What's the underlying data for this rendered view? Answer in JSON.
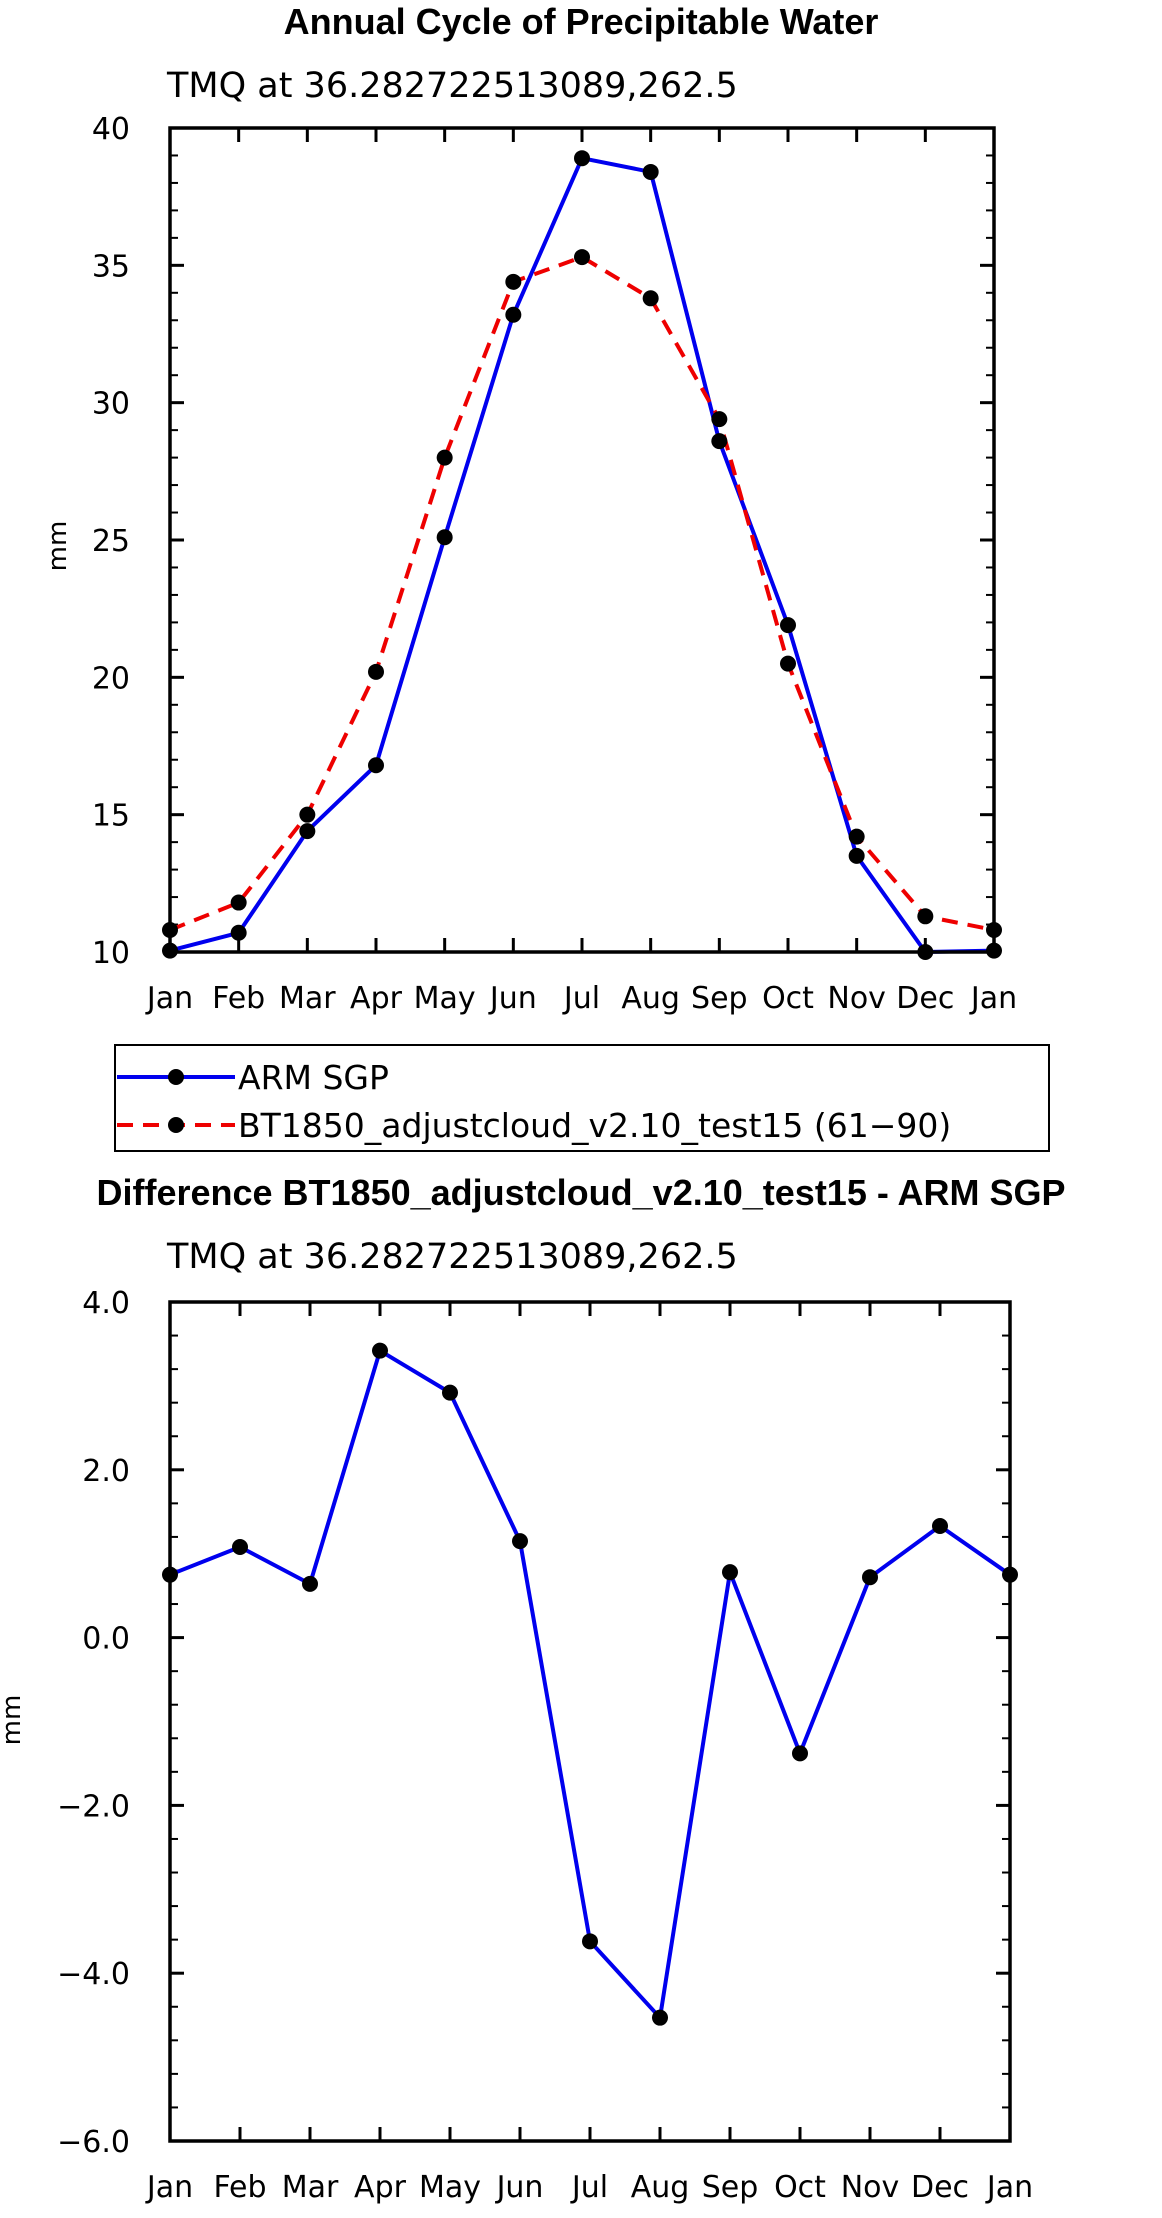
{
  "chart_data": [
    {
      "type": "line",
      "title": "Annual Cycle of Precipitable Water",
      "subtitle": "TMQ at 36.282722513089,262.5",
      "ylabel": "mm",
      "xlabel": "",
      "categories": [
        "Jan",
        "Feb",
        "Mar",
        "Apr",
        "May",
        "Jun",
        "Jul",
        "Aug",
        "Sep",
        "Oct",
        "Nov",
        "Dec",
        "Jan"
      ],
      "ylim": [
        10,
        40
      ],
      "yticks": [
        10,
        15,
        20,
        25,
        30,
        35,
        40
      ],
      "ytick_labels": [
        "10",
        "15",
        "20",
        "25",
        "30",
        "35",
        "40"
      ],
      "series": [
        {
          "name": "ARM SGP",
          "color": "#0000ee",
          "dash": "solid",
          "values": [
            10.05,
            10.7,
            14.4,
            16.8,
            25.1,
            33.2,
            38.9,
            38.4,
            28.6,
            21.9,
            13.5,
            10.0,
            10.05
          ]
        },
        {
          "name": "BT1850_adjustcloud_v2.10_test15 (61-90)",
          "color": "#ee0000",
          "dash": "dashed",
          "values": [
            10.8,
            11.8,
            15.0,
            20.2,
            28.0,
            34.4,
            35.3,
            33.8,
            29.4,
            20.5,
            14.2,
            11.3,
            10.8
          ]
        }
      ],
      "legend": {
        "entries": [
          "ARM SGP",
          "BT1850_adjustcloud_v2.10_test15 (61−90)"
        ],
        "placement": "below"
      }
    },
    {
      "type": "line",
      "title": "Difference BT1850_adjustcloud_v2.10_test15 - ARM SGP",
      "subtitle": "TMQ at 36.282722513089,262.5",
      "ylabel": "mm",
      "xlabel": "",
      "categories": [
        "Jan",
        "Feb",
        "Mar",
        "Apr",
        "May",
        "Jun",
        "Jul",
        "Aug",
        "Sep",
        "Oct",
        "Nov",
        "Dec",
        "Jan"
      ],
      "ylim": [
        -6,
        4
      ],
      "yticks": [
        -6,
        -4,
        -2,
        0,
        2,
        4
      ],
      "ytick_labels": [
        "−6.0",
        "−4.0",
        "−2.0",
        "0.0",
        "2.0",
        "4.0"
      ],
      "series": [
        {
          "name": "Difference",
          "color": "#0000ee",
          "dash": "solid",
          "values": [
            0.75,
            1.08,
            0.64,
            3.42,
            2.92,
            1.15,
            -3.62,
            -4.53,
            0.78,
            -1.38,
            0.72,
            1.33,
            0.75
          ]
        }
      ]
    }
  ]
}
